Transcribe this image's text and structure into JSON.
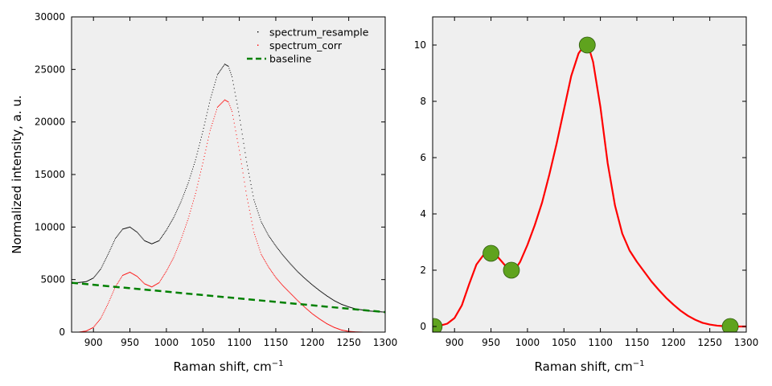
{
  "chart_data": [
    {
      "type": "line",
      "ylabel": "Normalized intensity, a. u.",
      "xlabel": "Raman shift, cm",
      "xlabel_sup": "−1",
      "xlim": [
        870,
        1300
      ],
      "ylim": [
        0,
        30000
      ],
      "xticks": [
        900,
        950,
        1000,
        1050,
        1100,
        1150,
        1200,
        1250,
        1300
      ],
      "yticks": [
        0,
        5000,
        10000,
        15000,
        20000,
        25000,
        30000
      ],
      "legend_position": "top-right",
      "background": "#efefef",
      "series": [
        {
          "name": "spectrum_resample",
          "style": "dots",
          "color": "#000000",
          "x": [
            870,
            880,
            890,
            900,
            910,
            920,
            930,
            940,
            950,
            960,
            970,
            980,
            990,
            1000,
            1010,
            1020,
            1030,
            1040,
            1050,
            1060,
            1070,
            1080,
            1085,
            1090,
            1100,
            1110,
            1120,
            1130,
            1140,
            1150,
            1160,
            1170,
            1180,
            1190,
            1200,
            1210,
            1220,
            1230,
            1240,
            1250,
            1260,
            1270,
            1280,
            1290,
            1300
          ],
          "y": [
            4700,
            4720,
            4800,
            5150,
            6000,
            7400,
            8900,
            9800,
            10000,
            9500,
            8700,
            8400,
            8700,
            9700,
            10900,
            12400,
            14200,
            16400,
            19100,
            22100,
            24500,
            25500,
            25300,
            24300,
            20600,
            16200,
            12600,
            10500,
            9200,
            8200,
            7300,
            6500,
            5750,
            5100,
            4500,
            3950,
            3450,
            3000,
            2650,
            2400,
            2200,
            2100,
            2000,
            1950,
            1900
          ]
        },
        {
          "name": "spectrum_corr",
          "style": "dots",
          "color": "#ff0000",
          "x": [
            870,
            880,
            890,
            900,
            910,
            920,
            930,
            940,
            950,
            960,
            970,
            980,
            990,
            1000,
            1010,
            1020,
            1030,
            1040,
            1050,
            1060,
            1070,
            1080,
            1085,
            1090,
            1100,
            1110,
            1120,
            1130,
            1140,
            1150,
            1160,
            1170,
            1180,
            1190,
            1200,
            1210,
            1220,
            1230,
            1240,
            1250,
            1260,
            1270,
            1280,
            1290,
            1300
          ],
          "y": [
            0,
            0,
            100,
            450,
            1300,
            2700,
            4300,
            5400,
            5700,
            5300,
            4600,
            4300,
            4700,
            5800,
            7100,
            8800,
            10800,
            13200,
            16100,
            19200,
            21400,
            22100,
            21900,
            21000,
            17300,
            13000,
            9500,
            7400,
            6200,
            5200,
            4400,
            3700,
            3000,
            2350,
            1750,
            1250,
            800,
            450,
            200,
            70,
            20,
            0,
            0,
            0,
            0
          ]
        },
        {
          "name": "baseline",
          "style": "dashed",
          "color": "#008000",
          "x": [
            870,
            1300
          ],
          "y": [
            4700,
            1900
          ]
        }
      ]
    },
    {
      "type": "line",
      "ylabel": "",
      "xlabel": "Raman shift, cm",
      "xlabel_sup": "−1",
      "xlim": [
        870,
        1300
      ],
      "ylim": [
        -0.2,
        11
      ],
      "xticks": [
        900,
        950,
        1000,
        1050,
        1100,
        1150,
        1200,
        1250,
        1300
      ],
      "yticks": [
        0,
        2,
        4,
        6,
        8,
        10
      ],
      "background": "#efefef",
      "series": [
        {
          "style": "line",
          "color": "#ff0000",
          "x": [
            870,
            880,
            890,
            900,
            910,
            920,
            930,
            940,
            950,
            960,
            970,
            978,
            985,
            990,
            1000,
            1010,
            1020,
            1030,
            1040,
            1050,
            1060,
            1070,
            1078,
            1082,
            1086,
            1090,
            1100,
            1110,
            1120,
            1130,
            1140,
            1150,
            1160,
            1170,
            1180,
            1190,
            1200,
            1210,
            1220,
            1230,
            1240,
            1250,
            1260,
            1270,
            1280,
            1290,
            1300
          ],
          "y": [
            0,
            0.03,
            0.1,
            0.3,
            0.75,
            1.5,
            2.2,
            2.55,
            2.6,
            2.45,
            2.15,
            2.0,
            2.1,
            2.3,
            2.9,
            3.6,
            4.4,
            5.4,
            6.5,
            7.7,
            8.9,
            9.7,
            10.0,
            9.95,
            9.75,
            9.4,
            7.8,
            5.8,
            4.3,
            3.3,
            2.7,
            2.3,
            1.95,
            1.6,
            1.3,
            1.02,
            0.78,
            0.56,
            0.38,
            0.24,
            0.13,
            0.07,
            0.03,
            0.01,
            0,
            0,
            0
          ]
        },
        {
          "style": "markers",
          "color": "#5fa31e",
          "x": [
            872,
            950,
            978,
            1082,
            1278
          ],
          "y": [
            0,
            2.6,
            2.0,
            10.0,
            0
          ]
        }
      ]
    }
  ]
}
